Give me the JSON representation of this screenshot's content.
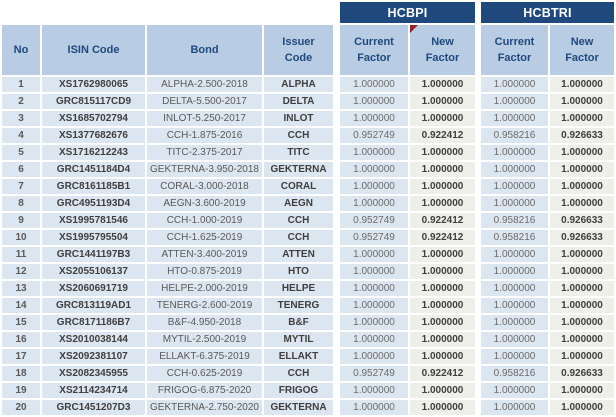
{
  "colors": {
    "navy": "#1F497D",
    "lightblue": "#B8CCE4",
    "bodyblue": "#DCE6F1",
    "offwhite": "#EFEFE9",
    "red": "#942222",
    "white_grid": "#FFFFFF"
  },
  "header": {
    "groups": [
      {
        "label": "HCBPI"
      },
      {
        "label": "HCBTRI"
      }
    ],
    "left_columns": [
      "No",
      "ISIN Code",
      "Bond",
      "Issuer Code"
    ],
    "factor_columns": [
      "Current Factor",
      "New Factor",
      "Current Factor",
      "New Factor"
    ],
    "comment_marker": "red-triangle-on-hcbpi-new-factor"
  },
  "rows": [
    {
      "no": "1",
      "isin": "XS1762980065",
      "bond": "ALPHA-2.500-2018",
      "issuer": "ALPHA",
      "hcbpi_current": "1.000000",
      "hcbpi_new": "1.000000",
      "hcbtri_current": "1.000000",
      "hcbtri_new": "1.000000"
    },
    {
      "no": "2",
      "isin": "GRC815117CD9",
      "bond": "DELTA-5.500-2017",
      "issuer": "DELTA",
      "hcbpi_current": "1.000000",
      "hcbpi_new": "1.000000",
      "hcbtri_current": "1.000000",
      "hcbtri_new": "1.000000"
    },
    {
      "no": "3",
      "isin": "XS1685702794",
      "bond": "INLOT-5.250-2017",
      "issuer": "INLOT",
      "hcbpi_current": "1.000000",
      "hcbpi_new": "1.000000",
      "hcbtri_current": "1.000000",
      "hcbtri_new": "1.000000"
    },
    {
      "no": "4",
      "isin": "XS1377682676",
      "bond": "CCH-1.875-2016",
      "issuer": "CCH",
      "hcbpi_current": "0.952749",
      "hcbpi_new": "0.922412",
      "hcbtri_current": "0.958216",
      "hcbtri_new": "0.926633"
    },
    {
      "no": "5",
      "isin": "XS1716212243",
      "bond": "TITC-2.375-2017",
      "issuer": "TITC",
      "hcbpi_current": "1.000000",
      "hcbpi_new": "1.000000",
      "hcbtri_current": "1.000000",
      "hcbtri_new": "1.000000"
    },
    {
      "no": "6",
      "isin": "GRC1451184D4",
      "bond": "GEKTERNA-3.950-2018",
      "issuer": "GEKTERNA",
      "hcbpi_current": "1.000000",
      "hcbpi_new": "1.000000",
      "hcbtri_current": "1.000000",
      "hcbtri_new": "1.000000"
    },
    {
      "no": "7",
      "isin": "GRC8161185B1",
      "bond": "CORAL-3.000-2018",
      "issuer": "CORAL",
      "hcbpi_current": "1.000000",
      "hcbpi_new": "1.000000",
      "hcbtri_current": "1.000000",
      "hcbtri_new": "1.000000"
    },
    {
      "no": "8",
      "isin": "GRC4951193D4",
      "bond": "AEGN-3.600-2019",
      "issuer": "AEGN",
      "hcbpi_current": "1.000000",
      "hcbpi_new": "1.000000",
      "hcbtri_current": "1.000000",
      "hcbtri_new": "1.000000"
    },
    {
      "no": "9",
      "isin": "XS1995781546",
      "bond": "CCH-1.000-2019",
      "issuer": "CCH",
      "hcbpi_current": "0.952749",
      "hcbpi_new": "0.922412",
      "hcbtri_current": "0.958216",
      "hcbtri_new": "0.926633"
    },
    {
      "no": "10",
      "isin": "XS1995795504",
      "bond": "CCH-1.625-2019",
      "issuer": "CCH",
      "hcbpi_current": "0.952749",
      "hcbpi_new": "0.922412",
      "hcbtri_current": "0.958216",
      "hcbtri_new": "0.926633"
    },
    {
      "no": "11",
      "isin": "GRC1441197B3",
      "bond": "ATTEN-3.400-2019",
      "issuer": "ATTEN",
      "hcbpi_current": "1.000000",
      "hcbpi_new": "1.000000",
      "hcbtri_current": "1.000000",
      "hcbtri_new": "1.000000"
    },
    {
      "no": "12",
      "isin": "XS2055106137",
      "bond": "HTO-0.875-2019",
      "issuer": "HTO",
      "hcbpi_current": "1.000000",
      "hcbpi_new": "1.000000",
      "hcbtri_current": "1.000000",
      "hcbtri_new": "1.000000"
    },
    {
      "no": "13",
      "isin": "XS2060691719",
      "bond": "HELPE-2.000-2019",
      "issuer": "HELPE",
      "hcbpi_current": "1.000000",
      "hcbpi_new": "1.000000",
      "hcbtri_current": "1.000000",
      "hcbtri_new": "1.000000"
    },
    {
      "no": "14",
      "isin": "GRC813119AD1",
      "bond": "TENERG-2.600-2019",
      "issuer": "TENERG",
      "hcbpi_current": "1.000000",
      "hcbpi_new": "1.000000",
      "hcbtri_current": "1.000000",
      "hcbtri_new": "1.000000"
    },
    {
      "no": "15",
      "isin": "GRC8171186B7",
      "bond": "B&F-4.950-2018",
      "issuer": "B&F",
      "hcbpi_current": "1.000000",
      "hcbpi_new": "1.000000",
      "hcbtri_current": "1.000000",
      "hcbtri_new": "1.000000"
    },
    {
      "no": "16",
      "isin": "XS2010038144",
      "bond": "MYTIL-2.500-2019",
      "issuer": "MYTIL",
      "hcbpi_current": "1.000000",
      "hcbpi_new": "1.000000",
      "hcbtri_current": "1.000000",
      "hcbtri_new": "1.000000"
    },
    {
      "no": "17",
      "isin": "XS2092381107",
      "bond": "ELLAKT-6.375-2019",
      "issuer": "ELLAKT",
      "hcbpi_current": "1.000000",
      "hcbpi_new": "1.000000",
      "hcbtri_current": "1.000000",
      "hcbtri_new": "1.000000"
    },
    {
      "no": "18",
      "isin": "XS2082345955",
      "bond": "CCH-0.625-2019",
      "issuer": "CCH",
      "hcbpi_current": "0.952749",
      "hcbpi_new": "0.922412",
      "hcbtri_current": "0.958216",
      "hcbtri_new": "0.926633"
    },
    {
      "no": "19",
      "isin": "XS2114234714",
      "bond": "FRIGOG-6.875-2020",
      "issuer": "FRIGOG",
      "hcbpi_current": "1.000000",
      "hcbpi_new": "1.000000",
      "hcbtri_current": "1.000000",
      "hcbtri_new": "1.000000"
    },
    {
      "no": "20",
      "isin": "GRC1451207D3",
      "bond": "GEKTERNA-2.750-2020",
      "issuer": "GEKTERNA",
      "hcbpi_current": "1.000000",
      "hcbpi_new": "1.000000",
      "hcbtri_current": "1.000000",
      "hcbtri_new": "1.000000"
    }
  ]
}
